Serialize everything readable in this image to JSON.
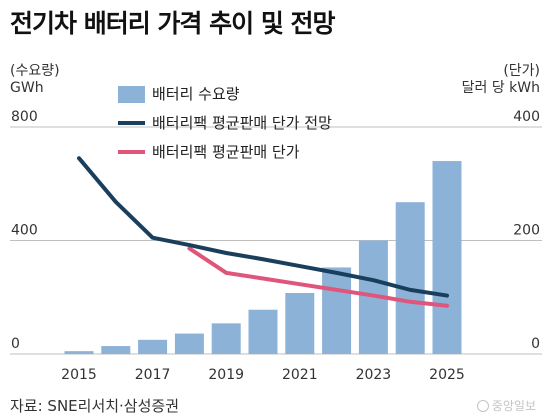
{
  "title": "전기차 배터리 가격 추이 및 전망",
  "source": "자료: SNE리서치·삼성증권",
  "brand": "중앙일보",
  "colors": {
    "bar": "#8cb2d8",
    "projection_line": "#1a3f5c",
    "price_line": "#e0567a",
    "grid": "#bfbfbf"
  },
  "chart_data": {
    "type": "bar+line",
    "x": [
      2015,
      2016,
      2017,
      2018,
      2019,
      2020,
      2021,
      2022,
      2023,
      2024,
      2025
    ],
    "x_tick_labels": [
      "2015",
      "2017",
      "2019",
      "2021",
      "2023",
      "2025"
    ],
    "left_axis": {
      "label_lines": [
        "(수요량)",
        "GWh"
      ],
      "ticks": [
        "800",
        "400",
        "0"
      ],
      "ylim": [
        0,
        800
      ]
    },
    "right_axis": {
      "label_lines": [
        "(단가)",
        "달러 당 kWh"
      ],
      "ticks": [
        "400",
        "200",
        "0"
      ],
      "ylim": [
        0,
        400
      ]
    },
    "grid": true,
    "legend_position": "top-center",
    "series": [
      {
        "name": "배터리 수요량",
        "kind": "bar",
        "axis": "left",
        "values": [
          10,
          28,
          50,
          72,
          108,
          156,
          215,
          305,
          400,
          535,
          680
        ]
      },
      {
        "name": "배터리팩 평균판매 단가 전망",
        "kind": "line",
        "axis": "right",
        "values": [
          345,
          268,
          205,
          192,
          178,
          167,
          155,
          143,
          130,
          113,
          103
        ]
      },
      {
        "name": "배터리팩 평균판매 단가",
        "kind": "line",
        "axis": "right",
        "values": [
          null,
          null,
          null,
          186,
          143,
          133,
          123,
          113,
          103,
          92,
          85
        ]
      }
    ]
  }
}
